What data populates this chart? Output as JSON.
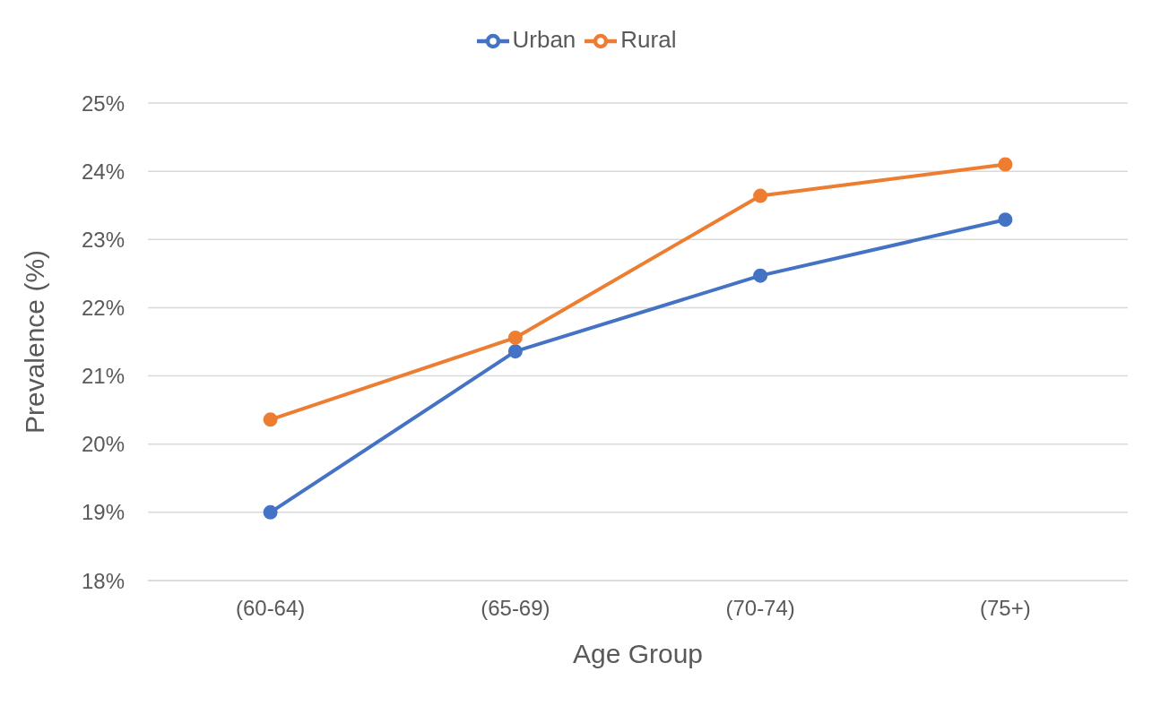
{
  "chart_data": {
    "type": "line",
    "xlabel": "Age Group",
    "ylabel": "Prevalence (%)",
    "categories": [
      "(60-64)",
      "(65-69)",
      "(70-74)",
      "(75+)"
    ],
    "series": [
      {
        "name": "Urban",
        "color": "#4472c4",
        "values": [
          19.0,
          21.36,
          22.47,
          23.29
        ]
      },
      {
        "name": "Rural",
        "color": "#ed7d31",
        "values": [
          20.36,
          21.56,
          23.64,
          24.1
        ]
      }
    ],
    "ylim": [
      18,
      25
    ],
    "yticks": [
      {
        "value": 18,
        "label": "18%"
      },
      {
        "value": 19,
        "label": "19%"
      },
      {
        "value": 20,
        "label": "20%"
      },
      {
        "value": 21,
        "label": "21%"
      },
      {
        "value": 22,
        "label": "22%"
      },
      {
        "value": 23,
        "label": "23%"
      },
      {
        "value": 24,
        "label": "24%"
      },
      {
        "value": 25,
        "label": "25%"
      }
    ],
    "grid": "y",
    "legend": "top",
    "marker": "circle",
    "line_style": "solid"
  }
}
